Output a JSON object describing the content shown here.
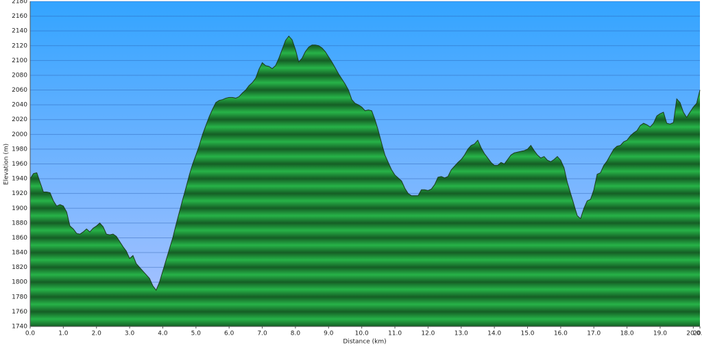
{
  "chart_data": {
    "type": "area",
    "x_label": "Distance   (km)",
    "y_label": "Elevation (m)",
    "fill_color": "#27b348",
    "line_color": "#1e3a1e",
    "grid": true,
    "xlim": [
      0,
      20.2
    ],
    "ylim": [
      1740,
      2180
    ],
    "yticks": [
      1740,
      1760,
      1780,
      1800,
      1820,
      1840,
      1860,
      1880,
      1900,
      1920,
      1940,
      1960,
      1980,
      2000,
      2020,
      2040,
      2060,
      2080,
      2100,
      2120,
      2140,
      2160,
      2180
    ],
    "xticks": [
      {
        "value": 0,
        "label": "0.0"
      },
      {
        "value": 1,
        "label": "1.0"
      },
      {
        "value": 2,
        "label": "2.0"
      },
      {
        "value": 3,
        "label": "3.0"
      },
      {
        "value": 4,
        "label": "4.0"
      },
      {
        "value": 5,
        "label": "5.0"
      },
      {
        "value": 6,
        "label": "6.0"
      },
      {
        "value": 7,
        "label": "7.0"
      },
      {
        "value": 8,
        "label": "8.0"
      },
      {
        "value": 9,
        "label": "9.0"
      },
      {
        "value": 10,
        "label": "10.0"
      },
      {
        "value": 11,
        "label": "11.0"
      },
      {
        "value": 12,
        "label": "12.0"
      },
      {
        "value": 13,
        "label": "13.0"
      },
      {
        "value": 14,
        "label": "14.0"
      },
      {
        "value": 15,
        "label": "15.0"
      },
      {
        "value": 16,
        "label": "16.0"
      },
      {
        "value": 17,
        "label": "17.0"
      },
      {
        "value": 18,
        "label": "18.0"
      },
      {
        "value": 19,
        "label": "19.0"
      },
      {
        "value": 20,
        "label": "20.0"
      },
      {
        "value": 20.2,
        "label": "20.2"
      }
    ],
    "x": [
      0,
      0.1,
      0.2,
      0.3,
      0.4,
      0.5,
      0.6,
      0.7,
      0.8,
      0.9,
      1,
      1.1,
      1.2,
      1.3,
      1.4,
      1.5,
      1.6,
      1.7,
      1.8,
      1.9,
      2,
      2.1,
      2.2,
      2.3,
      2.4,
      2.5,
      2.6,
      2.7,
      2.8,
      2.9,
      3,
      3.1,
      3.2,
      3.3,
      3.4,
      3.5,
      3.6,
      3.7,
      3.8,
      3.9,
      4,
      4.1,
      4.2,
      4.3,
      4.4,
      4.5,
      4.6,
      4.7,
      4.8,
      4.9,
      5,
      5.1,
      5.2,
      5.3,
      5.4,
      5.5,
      5.6,
      5.7,
      5.8,
      5.9,
      6,
      6.1,
      6.2,
      6.3,
      6.4,
      6.5,
      6.6,
      6.7,
      6.8,
      6.9,
      7,
      7.1,
      7.2,
      7.3,
      7.4,
      7.5,
      7.6,
      7.7,
      7.8,
      7.9,
      8,
      8.1,
      8.2,
      8.3,
      8.4,
      8.5,
      8.6,
      8.7,
      8.8,
      8.9,
      9,
      9.1,
      9.2,
      9.3,
      9.4,
      9.5,
      9.6,
      9.7,
      9.8,
      9.9,
      10,
      10.1,
      10.2,
      10.3,
      10.4,
      10.5,
      10.6,
      10.7,
      10.8,
      10.9,
      11,
      11.1,
      11.2,
      11.3,
      11.4,
      11.5,
      11.6,
      11.7,
      11.8,
      11.9,
      12,
      12.1,
      12.2,
      12.3,
      12.4,
      12.5,
      12.6,
      12.7,
      12.8,
      12.9,
      13,
      13.1,
      13.2,
      13.3,
      13.4,
      13.5,
      13.6,
      13.7,
      13.8,
      13.9,
      14,
      14.1,
      14.2,
      14.3,
      14.4,
      14.5,
      14.6,
      14.7,
      14.8,
      14.9,
      15,
      15.1,
      15.2,
      15.3,
      15.4,
      15.5,
      15.6,
      15.7,
      15.8,
      15.9,
      16,
      16.1,
      16.2,
      16.3,
      16.4,
      16.5,
      16.6,
      16.7,
      16.8,
      16.9,
      17,
      17.1,
      17.2,
      17.3,
      17.4,
      17.5,
      17.6,
      17.7,
      17.8,
      17.9,
      18,
      18.1,
      18.2,
      18.3,
      18.4,
      18.5,
      18.6,
      18.7,
      18.8,
      18.9,
      19,
      19.1,
      19.2,
      19.3,
      19.4,
      19.5,
      19.6,
      19.7,
      19.8,
      19.9,
      20,
      20.1,
      20.2
    ],
    "values": [
      1940,
      1947,
      1948,
      1935,
      1922,
      1922,
      1921,
      1910,
      1903,
      1905,
      1903,
      1895,
      1876,
      1872,
      1866,
      1865,
      1868,
      1872,
      1868,
      1873,
      1876,
      1880,
      1875,
      1865,
      1864,
      1865,
      1862,
      1855,
      1848,
      1842,
      1832,
      1836,
      1825,
      1820,
      1815,
      1810,
      1805,
      1795,
      1789,
      1800,
      1815,
      1830,
      1845,
      1860,
      1878,
      1895,
      1912,
      1928,
      1945,
      1960,
      1972,
      1985,
      2000,
      2012,
      2024,
      2034,
      2043,
      2046,
      2047,
      2049,
      2050,
      2050,
      2049,
      2051,
      2056,
      2060,
      2066,
      2070,
      2076,
      2088,
      2097,
      2093,
      2092,
      2089,
      2093,
      2103,
      2115,
      2127,
      2133,
      2128,
      2115,
      2098,
      2103,
      2112,
      2118,
      2121,
      2121,
      2120,
      2117,
      2112,
      2105,
      2098,
      2090,
      2082,
      2075,
      2068,
      2060,
      2047,
      2042,
      2040,
      2037,
      2032,
      2033,
      2032,
      2020,
      2005,
      1988,
      1972,
      1962,
      1952,
      1945,
      1941,
      1937,
      1927,
      1920,
      1917,
      1917,
      1917,
      1925,
      1925,
      1924,
      1926,
      1932,
      1942,
      1943,
      1941,
      1943,
      1952,
      1957,
      1962,
      1966,
      1972,
      1980,
      1985,
      1987,
      1992,
      1982,
      1974,
      1968,
      1962,
      1958,
      1958,
      1962,
      1960,
      1966,
      1972,
      1975,
      1976,
      1977,
      1978,
      1980,
      1985,
      1978,
      1972,
      1968,
      1970,
      1965,
      1963,
      1966,
      1970,
      1965,
      1955,
      1935,
      1920,
      1905,
      1890,
      1886,
      1900,
      1910,
      1912,
      1925,
      1946,
      1948,
      1958,
      1964,
      1972,
      1980,
      1984,
      1985,
      1990,
      1992,
      1998,
      2002,
      2005,
      2012,
      2015,
      2013,
      2010,
      2015,
      2025,
      2028,
      2030,
      2015,
      2014,
      2016,
      2048,
      2043,
      2030,
      2023,
      2030,
      2037,
      2042,
      2060
    ]
  }
}
